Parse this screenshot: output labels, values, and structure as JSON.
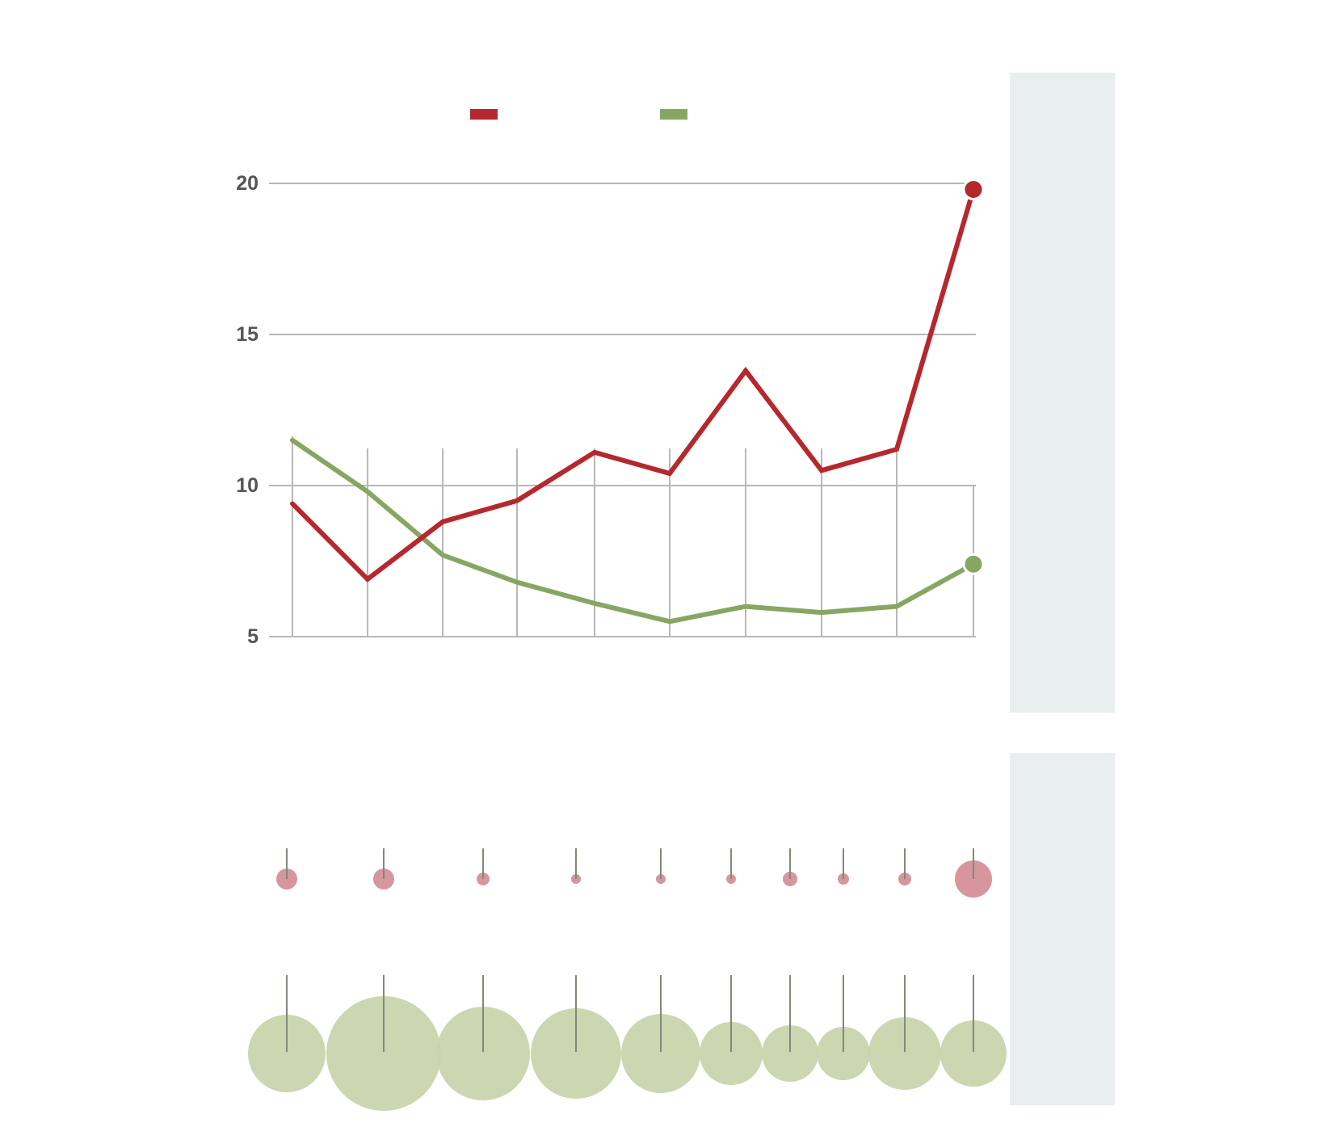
{
  "chart_data": [
    {
      "type": "line",
      "title": "",
      "xlabel": "",
      "ylabel": "",
      "yticks": [
        5,
        10,
        15,
        20
      ],
      "ylim": [
        5,
        20
      ],
      "grid": true,
      "legend_position": "top",
      "x": [
        1,
        2,
        3,
        4,
        5,
        6,
        7,
        8,
        9,
        10
      ],
      "series": [
        {
          "color": "#b5282e",
          "values": [
            9.4,
            6.9,
            8.8,
            9.5,
            11.1,
            10.4,
            13.8,
            10.5,
            11.2,
            19.8
          ]
        },
        {
          "color": "#88a663",
          "values": [
            11.5,
            9.8,
            7.7,
            6.8,
            6.1,
            5.5,
            6.0,
            5.8,
            6.0,
            7.4
          ]
        }
      ]
    },
    {
      "type": "scatter",
      "title": "",
      "x": [
        1,
        2,
        3,
        4,
        5,
        6,
        7,
        8,
        9,
        10
      ],
      "series": [
        {
          "color": "#d38a92",
          "sizes": [
            13,
            13,
            8,
            6,
            6,
            6,
            9,
            7,
            8,
            23
          ]
        },
        {
          "color": "#c8d3aa",
          "sizes": [
            48,
            71,
            58,
            56,
            49,
            39,
            35,
            33,
            45,
            41
          ]
        }
      ]
    }
  ],
  "side_panel_color": "#e8efee"
}
